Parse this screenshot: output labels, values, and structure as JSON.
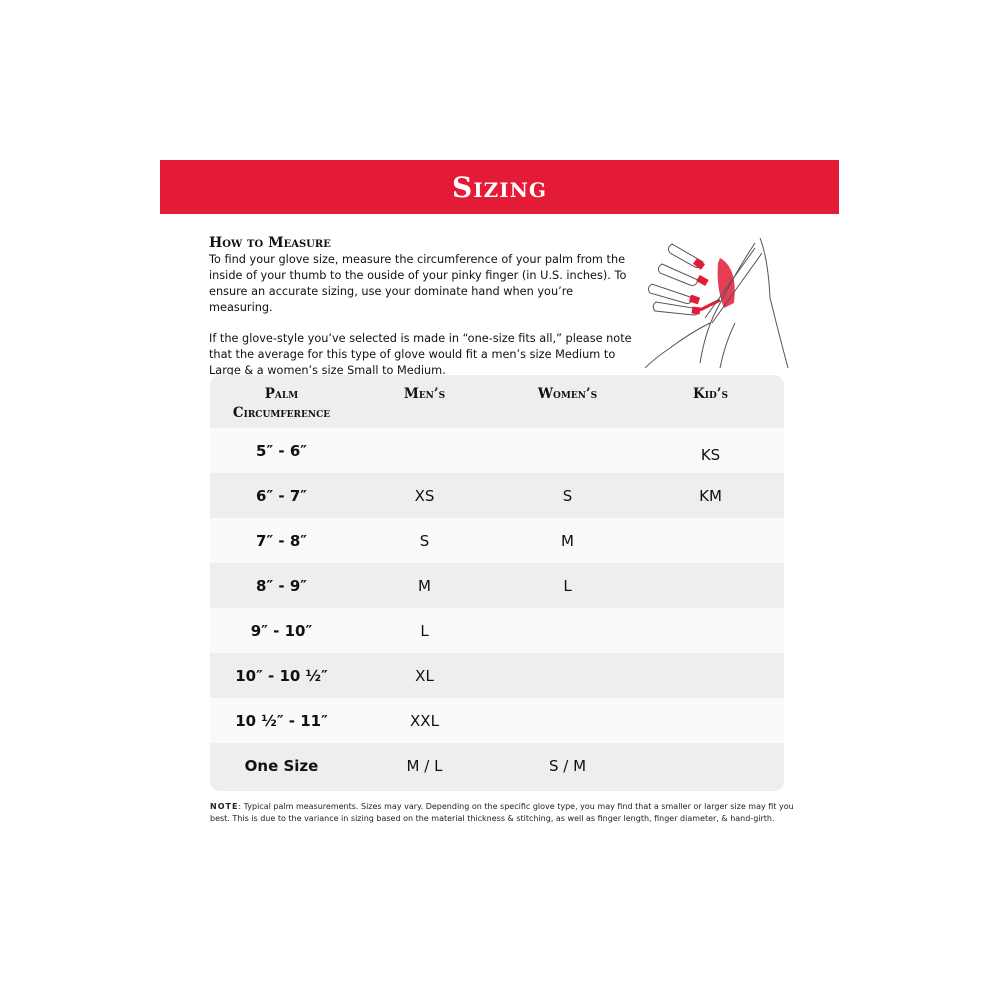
{
  "banner": {
    "title": "Sizing",
    "color": "#e41b36"
  },
  "how_to_measure": {
    "heading": "How to Measure",
    "paragraph1": "To find your glove size, measure the circumference of your palm from the inside of your thumb to the ouside of your pinky finger (in U.S. inches). To ensure an accurate sizing, use your dominate hand when you’re measuring.",
    "paragraph2": "If the glove-style you’ve selected is made in “one-size fits all,” please note that the average for this type of glove would fit a men’s size Medium to Large & a women’s size Small to Medium.",
    "illustration": "hand-measuring-illustration"
  },
  "table": {
    "headers": {
      "palm_line1": "Palm",
      "palm_line2": "Circumference",
      "mens": "Men’s",
      "womens": "Women’s",
      "kids": "Kid’s"
    },
    "rows": [
      {
        "palm": "5″ - 6″",
        "mens": "",
        "womens": "",
        "kids": "KS"
      },
      {
        "palm": "6″ - 7″",
        "mens": "XS",
        "womens": "S",
        "kids": "KM"
      },
      {
        "palm": "7″ - 8″",
        "mens": "S",
        "womens": "M",
        "kids": ""
      },
      {
        "palm": "8″ - 9″",
        "mens": "M",
        "womens": "L",
        "kids": ""
      },
      {
        "palm": "9″ - 10″",
        "mens": "L",
        "womens": "",
        "kids": ""
      },
      {
        "palm": "10″ - 10 ½″",
        "mens": "XL",
        "womens": "",
        "kids": ""
      },
      {
        "palm": "10 ½″ - 11″",
        "mens": "XXL",
        "womens": "",
        "kids": ""
      },
      {
        "palm": "One Size",
        "mens": "M / L",
        "womens": "S / M",
        "kids": ""
      }
    ]
  },
  "note": {
    "label": "NOTE",
    "text": ": Typical palm measurements. Sizes may vary. Depending on the specific glove type, you may find that a smaller or larger size may fit you best. This is due to the variance in sizing based on the material thickness & stitching, as well as finger length, finger diameter, & hand-girth."
  }
}
